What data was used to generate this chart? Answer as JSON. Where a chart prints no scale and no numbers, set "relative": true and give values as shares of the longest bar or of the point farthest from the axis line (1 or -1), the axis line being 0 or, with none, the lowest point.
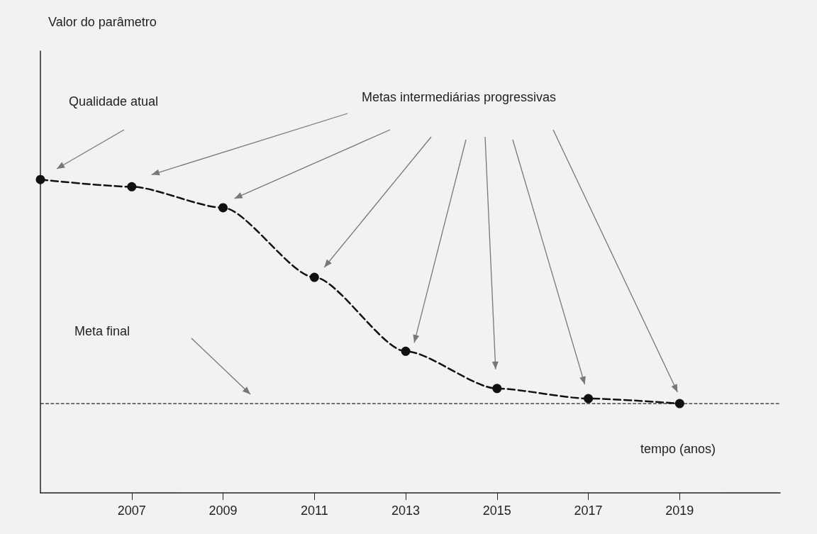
{
  "chart_data": {
    "type": "line",
    "relative": true,
    "xlabel": "tempo (anos)",
    "x": [
      2005,
      2007,
      2009,
      2011,
      2013,
      2015,
      2017,
      2019
    ],
    "values": [
      1,
      0.977,
      0.91,
      0.688,
      0.452,
      0.333,
      0.301,
      0.285
    ],
    "color": "#111111",
    "xlim": [
      2005,
      2021.2
    ],
    "xticks": [
      2007,
      2009,
      2011,
      2013,
      2015,
      2017,
      2019
    ],
    "marker": "circle",
    "line_style": "dashed",
    "grid": false,
    "ref_lines": [
      {
        "axis": "y",
        "value": 0.285,
        "color": "#222222",
        "line_style": "dashed"
      }
    ],
    "annotations": [
      "Qualidade atual",
      "Metas intermediárias progressivas",
      "Meta final",
      "Valor do parâmetro"
    ]
  }
}
